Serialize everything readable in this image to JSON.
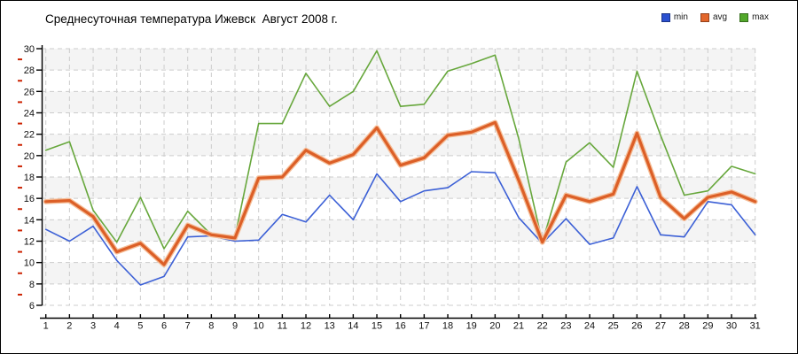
{
  "title": "Среднесуточная температура Ижевск  Август 2008 г.",
  "legend": {
    "items": [
      {
        "label": "min",
        "color": "#2b50d0"
      },
      {
        "label": "avg",
        "color": "#e2662b"
      },
      {
        "label": "max",
        "color": "#52a82b"
      }
    ]
  },
  "colors": {
    "grid": "#cccccc",
    "band": "#f4f4f4",
    "axis": "#000000",
    "minor_tick": "#cc2200",
    "tick_label": "#111111"
  },
  "chart_data": {
    "type": "line",
    "title": "Среднесуточная температура Ижевск  Август 2008 г.",
    "xlabel": "",
    "ylabel": "",
    "x": [
      1,
      2,
      3,
      4,
      5,
      6,
      7,
      8,
      9,
      10,
      11,
      12,
      13,
      14,
      15,
      16,
      17,
      18,
      19,
      20,
      21,
      22,
      23,
      24,
      25,
      26,
      27,
      28,
      29,
      30,
      31
    ],
    "ylim": [
      6,
      30
    ],
    "ytick_step": 2,
    "grid": true,
    "legend_position": "top-right",
    "series": [
      {
        "name": "max",
        "color": "#67a73c",
        "width": 1.6,
        "values": [
          20.5,
          21.3,
          14.9,
          11.9,
          16.1,
          11.3,
          14.8,
          12.6,
          12.4,
          23.0,
          23.0,
          27.7,
          24.6,
          26.0,
          29.8,
          24.6,
          24.8,
          27.9,
          28.6,
          29.4,
          21.6,
          11.9,
          19.4,
          21.2,
          18.9,
          27.9,
          21.9,
          16.3,
          16.7,
          19.0,
          18.3
        ]
      },
      {
        "name": "min",
        "color": "#3c60d6",
        "width": 1.6,
        "values": [
          13.1,
          12.0,
          13.4,
          10.2,
          7.9,
          8.7,
          12.4,
          12.5,
          12.0,
          12.1,
          14.5,
          13.8,
          16.3,
          14.0,
          18.3,
          15.7,
          16.7,
          17.0,
          18.5,
          18.4,
          14.2,
          11.8,
          14.1,
          11.7,
          12.3,
          17.1,
          12.6,
          12.4,
          15.7,
          15.4,
          12.6
        ]
      },
      {
        "name": "avg",
        "color": "#dc5f27",
        "halo": "#f5bd97",
        "width": 3.2,
        "values": [
          15.7,
          15.8,
          14.3,
          11.0,
          11.8,
          9.8,
          13.5,
          12.6,
          12.3,
          17.9,
          18.0,
          20.5,
          19.3,
          20.1,
          22.6,
          19.1,
          19.8,
          21.9,
          22.2,
          23.1,
          17.7,
          11.9,
          16.3,
          15.7,
          16.4,
          22.1,
          16.1,
          14.1,
          16.1,
          16.6,
          15.7
        ]
      }
    ]
  }
}
